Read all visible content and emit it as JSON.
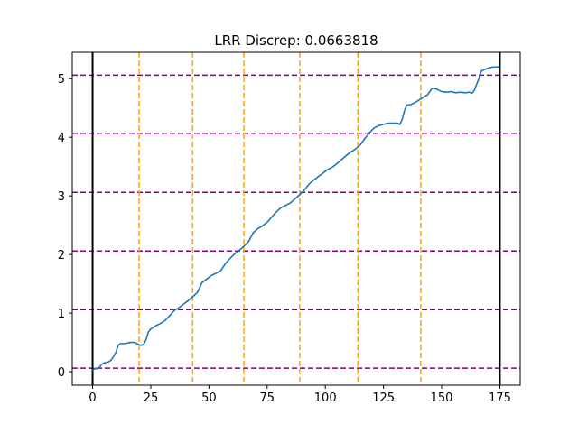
{
  "chart_data": {
    "type": "line",
    "title": "LRR Discrep: 0.0663818",
    "xlabel": "",
    "ylabel": "",
    "xlim": [
      -8.75,
      183.75
    ],
    "ylim": [
      -0.23,
      5.45
    ],
    "xticks": [
      0,
      25,
      50,
      75,
      100,
      125,
      150,
      175
    ],
    "yticks": [
      0,
      1,
      2,
      3,
      4,
      5
    ],
    "grid": false,
    "colors": {
      "series": "#1f77b4",
      "horizontal_lines": "#800080",
      "vertical_lines": "#ffa500",
      "boundary_lines": "#000000"
    },
    "horizontal_lines": [
      0.06,
      1.06,
      2.06,
      3.06,
      4.06,
      5.06
    ],
    "vertical_lines": [
      20,
      43,
      65,
      89,
      114,
      141
    ],
    "boundary_lines": [
      0,
      175
    ],
    "series": [
      {
        "x": [
          0,
          1,
          2,
          3,
          4,
          5,
          6,
          7,
          8,
          9,
          10,
          11,
          12,
          14,
          16,
          18,
          19,
          20,
          21,
          22,
          23,
          24,
          25,
          27,
          29,
          31,
          33,
          35,
          37,
          39,
          41,
          43,
          45,
          47,
          49,
          51,
          53,
          55,
          57,
          59,
          61,
          63,
          65,
          67,
          69,
          71,
          73,
          75,
          77,
          79,
          81,
          83,
          85,
          87,
          89,
          91,
          93,
          95,
          97,
          99,
          101,
          103,
          105,
          107,
          109,
          111,
          113,
          115,
          117,
          119,
          121,
          123,
          125,
          127,
          129,
          131,
          132,
          133,
          134,
          135,
          136,
          138,
          140,
          142,
          144,
          146,
          148,
          150,
          152,
          154,
          156,
          158,
          160,
          162,
          163,
          164,
          165,
          166,
          167,
          168,
          170,
          172,
          174,
          175
        ],
        "y": [
          0.02,
          0.06,
          0.05,
          0.08,
          0.13,
          0.15,
          0.16,
          0.17,
          0.2,
          0.26,
          0.33,
          0.45,
          0.48,
          0.48,
          0.5,
          0.5,
          0.48,
          0.46,
          0.45,
          0.47,
          0.55,
          0.68,
          0.73,
          0.78,
          0.82,
          0.87,
          0.95,
          1.04,
          1.09,
          1.15,
          1.21,
          1.28,
          1.35,
          1.52,
          1.58,
          1.64,
          1.68,
          1.72,
          1.84,
          1.93,
          2.01,
          2.07,
          2.14,
          2.22,
          2.37,
          2.44,
          2.49,
          2.55,
          2.64,
          2.73,
          2.8,
          2.84,
          2.88,
          2.95,
          3.02,
          3.1,
          3.2,
          3.27,
          3.33,
          3.39,
          3.45,
          3.49,
          3.55,
          3.62,
          3.69,
          3.75,
          3.8,
          3.87,
          3.98,
          4.08,
          4.16,
          4.2,
          4.22,
          4.24,
          4.24,
          4.24,
          4.22,
          4.3,
          4.45,
          4.55,
          4.55,
          4.58,
          4.63,
          4.68,
          4.73,
          4.84,
          4.82,
          4.78,
          4.77,
          4.78,
          4.76,
          4.77,
          4.76,
          4.77,
          4.75,
          4.8,
          4.9,
          5.0,
          5.13,
          5.15,
          5.18,
          5.2,
          5.2,
          5.21
        ]
      }
    ]
  }
}
